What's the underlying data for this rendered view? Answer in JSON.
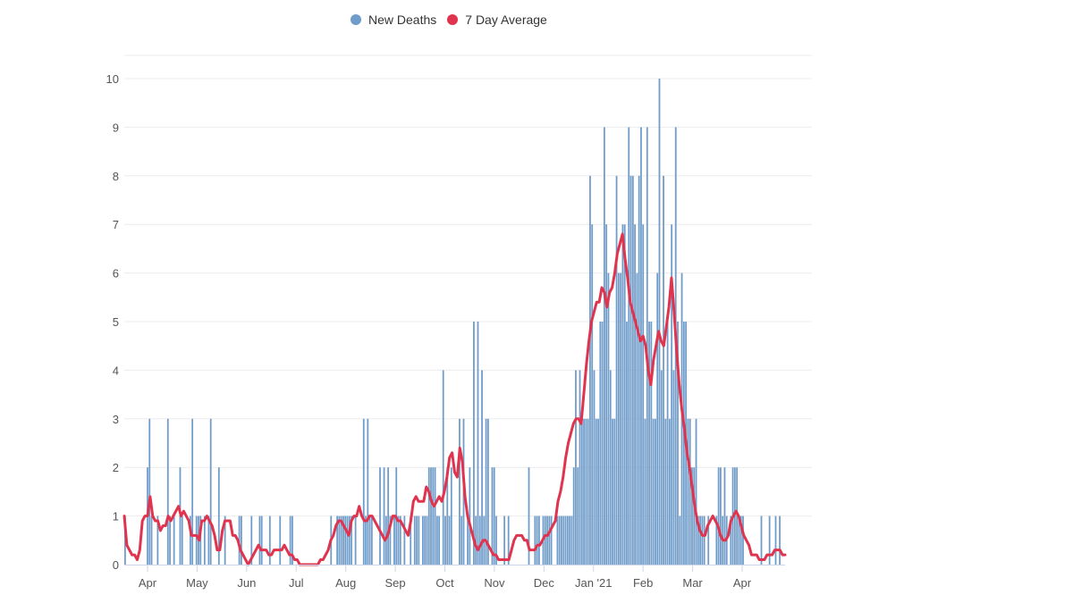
{
  "chart_data": {
    "type": "bar",
    "legend": [
      {
        "name": "New Deaths",
        "color": "#6f9cc9"
      },
      {
        "name": "7 Day Average",
        "color": "#e0344e"
      }
    ],
    "ylim": [
      0,
      10
    ],
    "yticks": [
      0,
      1,
      2,
      3,
      4,
      5,
      6,
      7,
      8,
      9,
      10
    ],
    "grid": "horizontal",
    "xtick_labels": [
      "Apr",
      "May",
      "Jun",
      "Jul",
      "Aug",
      "Sep",
      "Oct",
      "Nov",
      "Dec",
      "Jan '21",
      "Feb",
      "Mar",
      "Apr"
    ],
    "x_description": "daily, late March 2020 through late April 2021",
    "bar_series": {
      "name": "New Deaths",
      "values": [
        1,
        0,
        0,
        0,
        0,
        0,
        0,
        0,
        0,
        0,
        0,
        2,
        3,
        1,
        0,
        0,
        1,
        0,
        0,
        0,
        0,
        3,
        1,
        0,
        1,
        0,
        0,
        2,
        1,
        0,
        0,
        0,
        1,
        3,
        0,
        1,
        1,
        1,
        0,
        1,
        0,
        1,
        3,
        0,
        0,
        0,
        2,
        0,
        0,
        1,
        0,
        0,
        0,
        0,
        0,
        0,
        1,
        1,
        0,
        0,
        0,
        0,
        1,
        0,
        0,
        0,
        1,
        1,
        0,
        0,
        0,
        1,
        0,
        0,
        0,
        0,
        1,
        0,
        0,
        0,
        0,
        1,
        1,
        0,
        0,
        0,
        0,
        0,
        0,
        0,
        0,
        0,
        0,
        0,
        0,
        0,
        0,
        0,
        0,
        0,
        0,
        1,
        0,
        0,
        1,
        1,
        1,
        1,
        1,
        1,
        1,
        1,
        0,
        1,
        0,
        0,
        0,
        3,
        1,
        3,
        1,
        1,
        0,
        0,
        0,
        2,
        0,
        2,
        1,
        2,
        1,
        0,
        1,
        2,
        1,
        1,
        0,
        1,
        0,
        0,
        1,
        0,
        1,
        1,
        1,
        0,
        1,
        1,
        1,
        2,
        2,
        2,
        2,
        1,
        1,
        0,
        4,
        1,
        2,
        1,
        2,
        0,
        0,
        0,
        3,
        1,
        3,
        0,
        1,
        2,
        0,
        5,
        1,
        5,
        1,
        4,
        1,
        3,
        3,
        0,
        2,
        2,
        1,
        0,
        0,
        0,
        1,
        0,
        1,
        0,
        0,
        0,
        0,
        0,
        0,
        0,
        0,
        0,
        2,
        0,
        0,
        1,
        1,
        1,
        0,
        1,
        1,
        1,
        1,
        1,
        0,
        0,
        1,
        1,
        1,
        1,
        1,
        1,
        1,
        1,
        2,
        4,
        2,
        4,
        3,
        3,
        3,
        3,
        8,
        7,
        4,
        3,
        3,
        5,
        5,
        9,
        7,
        6,
        4,
        3,
        3,
        8,
        6,
        6,
        7,
        7,
        5,
        9,
        8,
        8,
        7,
        6,
        8,
        9,
        7,
        3,
        9,
        5,
        5,
        3,
        3,
        6,
        10,
        4,
        8,
        3,
        5,
        3,
        7,
        4,
        9,
        5,
        1,
        6,
        5,
        5,
        3,
        3,
        2,
        2,
        3,
        1,
        1,
        1,
        1,
        0,
        1,
        0,
        0,
        0,
        1,
        2,
        2,
        1,
        2,
        1,
        0,
        1,
        2,
        2,
        2,
        1,
        1,
        1,
        0,
        0,
        0,
        0,
        0,
        0,
        0,
        0,
        1,
        0,
        0,
        0,
        1,
        0,
        0,
        1,
        0,
        1,
        0,
        0
      ]
    },
    "line_series": {
      "name": "7 Day Average",
      "values": [
        1,
        0.4,
        0.3,
        0.2,
        0.2,
        0.1,
        0.3,
        0.9,
        1,
        1,
        1.4,
        1,
        0.9,
        0.9,
        0.7,
        0.8,
        0.8,
        1,
        0.9,
        1,
        1.1,
        1.2,
        1,
        1.1,
        1,
        0.9,
        0.6,
        0.6,
        0.6,
        0.5,
        0.9,
        0.9,
        1,
        0.9,
        0.8,
        0.6,
        0.3,
        0.3,
        0.7,
        0.9,
        0.9,
        0.9,
        0.6,
        0.6,
        0.5,
        0.3,
        0.2,
        0.1,
        0,
        0.1,
        0.2,
        0.3,
        0.4,
        0.3,
        0.3,
        0.3,
        0.2,
        0.2,
        0.3,
        0.3,
        0.3,
        0.3,
        0.4,
        0.3,
        0.2,
        0.2,
        0.1,
        0.1,
        0,
        0,
        0,
        0,
        0,
        0,
        0,
        0,
        0.1,
        0.1,
        0.2,
        0.3,
        0.5,
        0.6,
        0.8,
        0.9,
        0.9,
        0.8,
        0.7,
        0.6,
        0.9,
        1,
        1,
        1.2,
        1,
        0.9,
        0.9,
        1,
        1,
        0.9,
        0.8,
        0.7,
        0.6,
        0.5,
        0.6,
        0.8,
        1,
        1,
        0.9,
        0.9,
        0.8,
        0.7,
        0.6,
        0.9,
        1.3,
        1.4,
        1.3,
        1.3,
        1.3,
        1.6,
        1.5,
        1.3,
        1.2,
        1.3,
        1.4,
        1.3,
        1.5,
        1.8,
        2.2,
        2.3,
        1.9,
        1.8,
        2.4,
        2.1,
        1.4,
        1,
        0.8,
        0.6,
        0.4,
        0.3,
        0.4,
        0.5,
        0.5,
        0.4,
        0.3,
        0.2,
        0.2,
        0.1,
        0.1,
        0.1,
        0.1,
        0.1,
        0.3,
        0.5,
        0.6,
        0.6,
        0.6,
        0.5,
        0.5,
        0.3,
        0.3,
        0.3,
        0.4,
        0.4,
        0.5,
        0.6,
        0.6,
        0.7,
        0.8,
        0.9,
        1.3,
        1.5,
        1.8,
        2.2,
        2.5,
        2.7,
        2.9,
        3,
        3,
        2.9,
        3.5,
        4.1,
        4.6,
        5,
        5.2,
        5.4,
        5.4,
        5.7,
        5.6,
        5.3,
        5.6,
        5.7,
        6,
        6.4,
        6.6,
        6.8,
        6.3,
        5.9,
        5.4,
        5.2,
        5,
        4.8,
        4.6,
        4.7,
        4.5,
        4,
        3.7,
        4.2,
        4.5,
        4.8,
        4.6,
        4.5,
        4.9,
        5.3,
        5.9,
        5.2,
        4.4,
        3.7,
        3.2,
        2.8,
        2.3,
        2,
        1.6,
        1.2,
        0.9,
        0.7,
        0.6,
        0.6,
        0.8,
        0.9,
        1,
        0.9,
        0.8,
        0.6,
        0.5,
        0.5,
        0.6,
        0.9,
        1,
        1.1,
        1,
        0.8,
        0.6,
        0.5,
        0.4,
        0.2,
        0.2,
        0.2,
        0.1,
        0.1,
        0.1,
        0.2,
        0.2,
        0.2,
        0.3,
        0.3,
        0.3,
        0.2,
        0.2
      ]
    }
  }
}
